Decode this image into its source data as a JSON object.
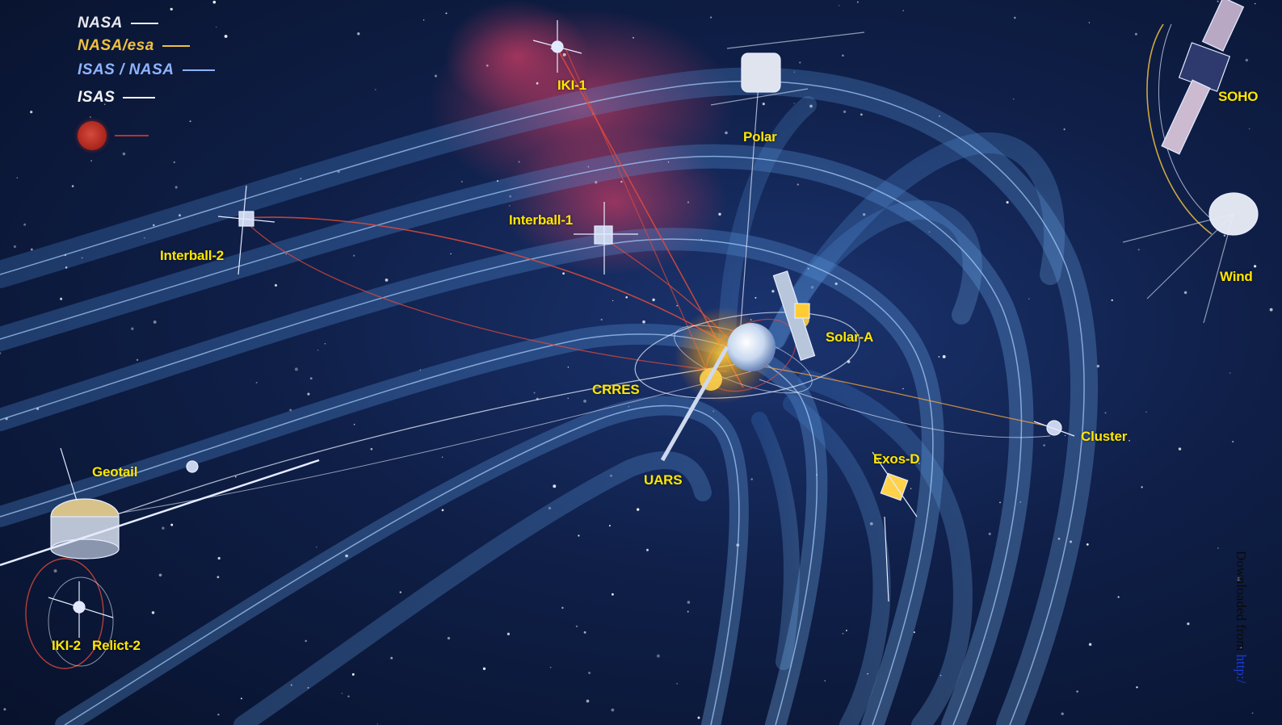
{
  "legend": {
    "items": [
      {
        "text": "NASA",
        "text_color": "#e8e8ee",
        "line_color": "#e8e8ee"
      },
      {
        "text": "NASA/esa",
        "text_color": "#f0c040",
        "line_color": "#f0c040"
      },
      {
        "text": "ISAS / NASA",
        "text_color": "#8fb4ff",
        "line_color": "#8fb4ff"
      },
      {
        "text": "ISAS",
        "text_color": "#f4f4f4",
        "line_color": "#f4f4f4"
      },
      {
        "text": "",
        "text_color": "#c0302a",
        "line_color": "#c0302a",
        "emblem": "red-emblem"
      }
    ]
  },
  "labels": {
    "iki1": "IKI-1",
    "polar": "Polar",
    "soho": "SOHO",
    "wind": "Wind",
    "interball1": "Interball-1",
    "interball2": "Interball-2",
    "solar_a": "Solar-A",
    "crres": "CRRES",
    "cluster": "Cluster",
    "exos_d": "Exos-D",
    "uars": "UARS",
    "geotail": "Geotail",
    "iki2": "IKI-2",
    "relict2": "Relict-2"
  },
  "watermark": {
    "prefix": "Downloaded from ",
    "link": "http:/"
  },
  "colors": {
    "label": "#ffe600",
    "field_lines": "#5a9be0",
    "orbit_red": "#e04a3a",
    "orbit_white": "#e6ecff",
    "nebula": "#b0305a"
  }
}
